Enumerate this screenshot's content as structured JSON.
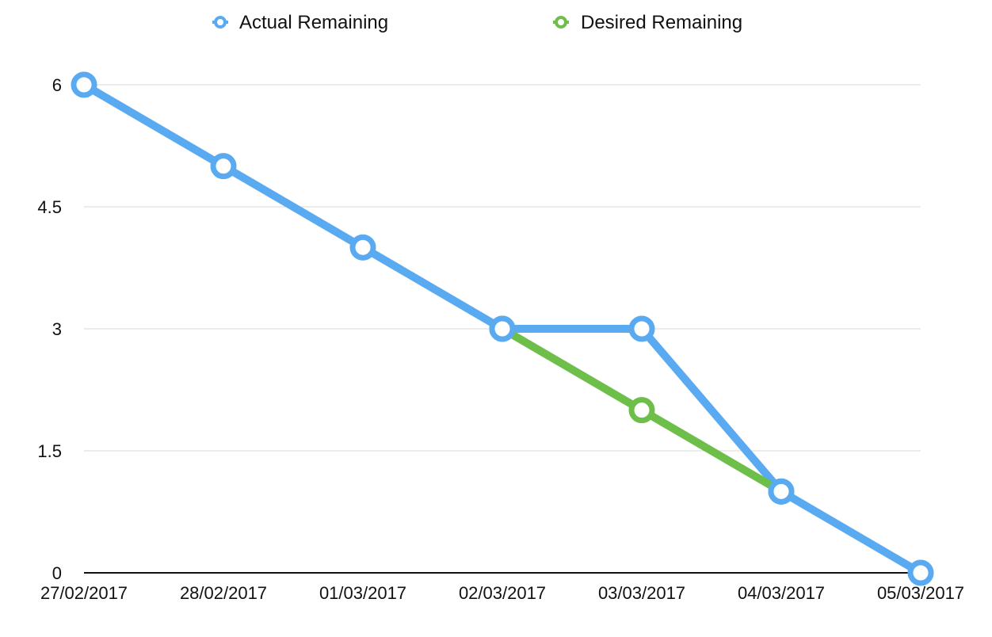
{
  "chart_data": {
    "type": "line",
    "title": "",
    "xlabel": "",
    "ylabel": "",
    "categories": [
      "27/02/2017",
      "28/02/2017",
      "01/03/2017",
      "02/03/2017",
      "03/03/2017",
      "04/03/2017",
      "05/03/2017"
    ],
    "ylim": [
      0,
      6
    ],
    "yticks": [
      "0",
      "1.5",
      "3",
      "4.5",
      "6"
    ],
    "grid": true,
    "legend_position": "top-center",
    "series": [
      {
        "name": "Actual Remaining",
        "color": "#5aaaf2",
        "values": [
          6,
          5,
          4,
          3,
          3,
          1,
          0
        ]
      },
      {
        "name": "Desired Remaining",
        "color": "#6ebe4a",
        "values": [
          null,
          null,
          null,
          3,
          2,
          1,
          null
        ]
      }
    ]
  }
}
